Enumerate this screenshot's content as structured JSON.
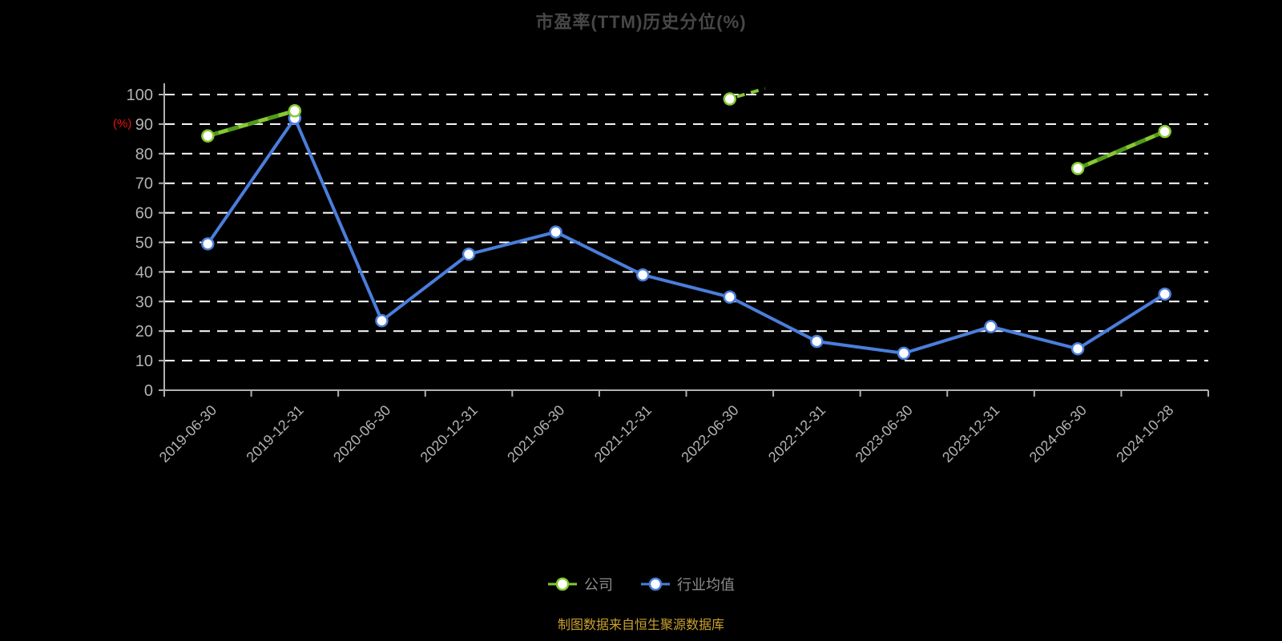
{
  "title": "市盈率(TTM)历史分位(%)",
  "y_axis_unit": "(%)",
  "footer": "制图数据来自恒生聚源数据库",
  "colors": {
    "background": "#000000",
    "title": "#474747",
    "grid": "#ffffff",
    "axis": "#b0b0b0",
    "tick_label": "#b3b3b3",
    "y_unit": "#ee1111",
    "legend_label": "#8c8c8c",
    "footer": "#c9a12e",
    "marker_fill": "#ffffff"
  },
  "chart_data": {
    "type": "line",
    "categories": [
      "2019-06-30",
      "2019-12-31",
      "2020-06-30",
      "2020-12-31",
      "2021-06-30",
      "2021-12-31",
      "2022-06-30",
      "2022-12-31",
      "2023-06-30",
      "2023-12-31",
      "2024-06-30",
      "2024-10-28"
    ],
    "series": [
      {
        "name": "公司",
        "color": "#86c832",
        "dash_color": "#4f9a1a",
        "style": "dashed",
        "values": [
          86,
          94.5,
          null,
          null,
          null,
          null,
          98.5,
          null,
          null,
          null,
          75,
          87.5
        ],
        "clipped_stub_after_index": 6
      },
      {
        "name": "行业均值",
        "color": "#4a7edc",
        "style": "solid",
        "values": [
          49.5,
          92,
          23.5,
          46,
          53.5,
          39,
          31.5,
          16.5,
          12.5,
          21.5,
          14,
          32.5
        ]
      }
    ],
    "title": "市盈率(TTM)历史分位(%)",
    "xlabel": "",
    "ylabel": "(%)",
    "ylim": [
      0,
      100
    ],
    "yticks": [
      0,
      10,
      20,
      30,
      40,
      50,
      60,
      70,
      80,
      90,
      100
    ],
    "grid": "horizontal-dashed",
    "legend_position": "bottom"
  }
}
